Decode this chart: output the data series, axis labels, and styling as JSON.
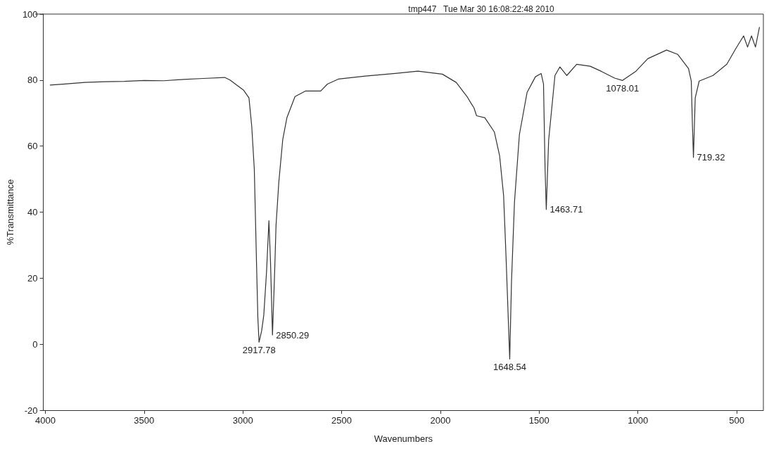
{
  "chart_data": {
    "type": "line",
    "title": "tmp447   Tue Mar 30 16:08:22:48 2010",
    "xlabel": "Wavenumbers",
    "ylabel": "%Transmittance",
    "xlim": [
      4010,
      365
    ],
    "xticks": [
      4000,
      3500,
      3000,
      2500,
      2000,
      1500,
      1000,
      500
    ],
    "ylim": [
      -20,
      100
    ],
    "yticks": [
      -20,
      0,
      20,
      40,
      60,
      80,
      100
    ],
    "grid": false,
    "marker": "none",
    "line_style": "solid",
    "series": [
      {
        "color": "#333333",
        "x": [
          3975,
          3900,
          3800,
          3700,
          3600,
          3500,
          3400,
          3300,
          3200,
          3092,
          3065,
          2997,
          2969,
          2955,
          2942,
          2932,
          2924,
          2918,
          2905,
          2894,
          2880,
          2868,
          2860,
          2850,
          2840,
          2832,
          2818,
          2798,
          2777,
          2736,
          2682,
          2606,
          2572,
          2517,
          2380,
          2229,
          2114,
          1990,
          1920,
          1865,
          1844,
          1830,
          1817,
          1775,
          1727,
          1700,
          1680,
          1668,
          1649,
          1640,
          1625,
          1600,
          1561,
          1519,
          1490,
          1478,
          1470,
          1464,
          1452,
          1420,
          1395,
          1360,
          1310,
          1242,
          1187,
          1118,
          1078,
          1010,
          950,
          855,
          799,
          744,
          730,
          724,
          719,
          710,
          690,
          620,
          550,
          505,
          465,
          445,
          425,
          405,
          385
        ],
        "values": [
          78.5,
          78.8,
          79.3,
          79.5,
          79.6,
          79.9,
          79.8,
          80.2,
          80.5,
          80.8,
          80,
          77,
          74.6,
          66,
          53,
          27.6,
          8,
          0.6,
          4,
          8.8,
          22,
          37.4,
          25,
          2.8,
          20,
          36,
          49,
          62,
          68.6,
          75,
          76.7,
          76.7,
          78.8,
          80.3,
          81.2,
          82,
          82.7,
          81.8,
          79.3,
          75,
          72.9,
          71.6,
          69.2,
          68.6,
          64.3,
          57,
          45,
          27,
          -4.5,
          19,
          43,
          63.5,
          76.3,
          81,
          82,
          78.8,
          53,
          40.8,
          61.8,
          81.4,
          84,
          81.4,
          84.8,
          84.2,
          82.7,
          80.6,
          79.9,
          82.7,
          86.5,
          89.1,
          87.8,
          83.5,
          79.7,
          66,
          56.6,
          74.6,
          79.7,
          81.4,
          84.8,
          89.5,
          93.4,
          90,
          93.4,
          90,
          96
        ]
      }
    ],
    "annotations": [
      {
        "text": "2917.78",
        "x": 2918,
        "y": 0.6
      },
      {
        "text": "2850.29",
        "x": 2850,
        "y": 2.8
      },
      {
        "text": "1648.54",
        "x": 1649,
        "y": -4.5
      },
      {
        "text": "1463.71",
        "x": 1464,
        "y": 40.8
      },
      {
        "text": "1078.01",
        "x": 1078,
        "y": 79.9
      },
      {
        "text": "719.32",
        "x": 719,
        "y": 56.6
      }
    ]
  }
}
